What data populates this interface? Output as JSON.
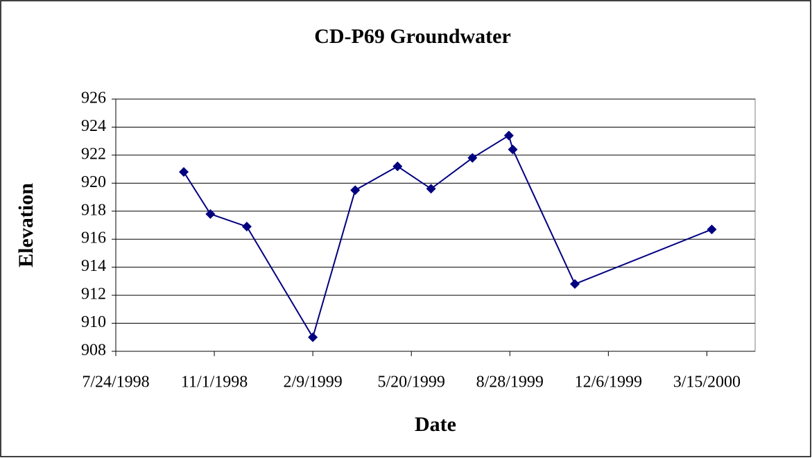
{
  "chart_data": {
    "type": "line",
    "title": "CD-P69 Groundwater",
    "x_label": "Date",
    "y_label": "Elevation",
    "x": [
      "10/1/1998",
      "10/28/1998",
      "12/4/1998",
      "2/9/1999",
      "3/24/1999",
      "5/6/1999",
      "6/9/1999",
      "7/21/1999",
      "8/27/1999",
      "8/31/1999",
      "11/2/1999",
      "3/20/2000"
    ],
    "series": [
      {
        "name": "Elevation",
        "color": "#000080",
        "values": [
          920.8,
          917.8,
          916.9,
          909.0,
          919.5,
          921.2,
          919.6,
          921.8,
          923.4,
          922.4,
          912.8,
          916.7
        ]
      }
    ],
    "xlim": [
      "7/24/1998",
      "5/3/2000"
    ],
    "xticks": [
      "7/24/1998",
      "11/1/1998",
      "2/9/1999",
      "5/20/1999",
      "8/28/1999",
      "12/6/1999",
      "3/15/2000"
    ],
    "ylim": [
      908,
      926
    ],
    "yticks": [
      908,
      910,
      912,
      914,
      916,
      918,
      920,
      922,
      924,
      926
    ],
    "grid": true
  }
}
